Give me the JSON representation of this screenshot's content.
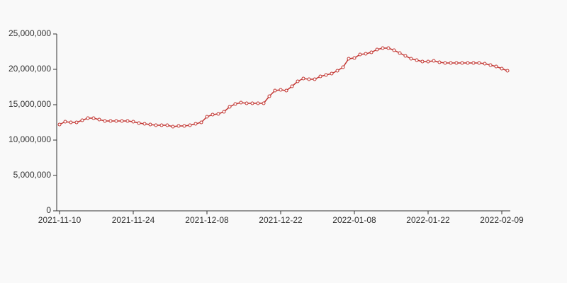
{
  "chart_data": {
    "type": "line",
    "categories": [
      "2021-11-10",
      null,
      null,
      null,
      null,
      null,
      null,
      null,
      null,
      null,
      null,
      null,
      null,
      "2021-11-24",
      null,
      null,
      null,
      null,
      null,
      null,
      null,
      null,
      null,
      null,
      null,
      null,
      "2021-12-08",
      null,
      null,
      null,
      null,
      null,
      null,
      null,
      null,
      null,
      null,
      null,
      null,
      "2021-12-22",
      null,
      null,
      null,
      null,
      null,
      null,
      null,
      null,
      null,
      null,
      null,
      null,
      "2022-01-08",
      null,
      null,
      null,
      null,
      null,
      null,
      null,
      null,
      null,
      null,
      null,
      null,
      "2022-01-22",
      null,
      null,
      null,
      null,
      null,
      null,
      null,
      null,
      null,
      null,
      null,
      null,
      "2022-02-09",
      null
    ],
    "series": [
      {
        "color": "#c23531",
        "values": [
          12200000,
          12600000,
          12500000,
          12500000,
          12800000,
          13100000,
          13100000,
          12900000,
          12700000,
          12700000,
          12700000,
          12700000,
          12700000,
          12600000,
          12400000,
          12300000,
          12200000,
          12100000,
          12100000,
          12100000,
          11900000,
          12000000,
          12000000,
          12100000,
          12300000,
          12500000,
          13300000,
          13600000,
          13700000,
          14000000,
          14700000,
          15100000,
          15300000,
          15200000,
          15200000,
          15200000,
          15200000,
          16200000,
          17000000,
          17100000,
          17000000,
          17600000,
          18300000,
          18700000,
          18600000,
          18600000,
          19000000,
          19200000,
          19400000,
          19800000,
          20300000,
          21500000,
          21600000,
          22100000,
          22200000,
          22400000,
          22800000,
          23000000,
          23000000,
          22700000,
          22300000,
          21900000,
          21500000,
          21300000,
          21100000,
          21100000,
          21200000,
          21000000,
          20900000,
          20900000,
          20900000,
          20900000,
          20900000,
          20900000,
          20900000,
          20800000,
          20600000,
          20400000,
          20100000,
          19800000
        ]
      }
    ],
    "ylim": [
      0,
      25000000
    ],
    "yticks": [
      0,
      {
        "value": 5000000,
        "label": "5,000,000"
      },
      {
        "value": 10000000,
        "label": "10,000,000"
      },
      {
        "value": 15000000,
        "label": "15,000,000"
      },
      {
        "value": 20000000,
        "label": "20,000,000"
      },
      {
        "value": 25000000,
        "label": "25,000,000"
      }
    ],
    "grid": false
  }
}
